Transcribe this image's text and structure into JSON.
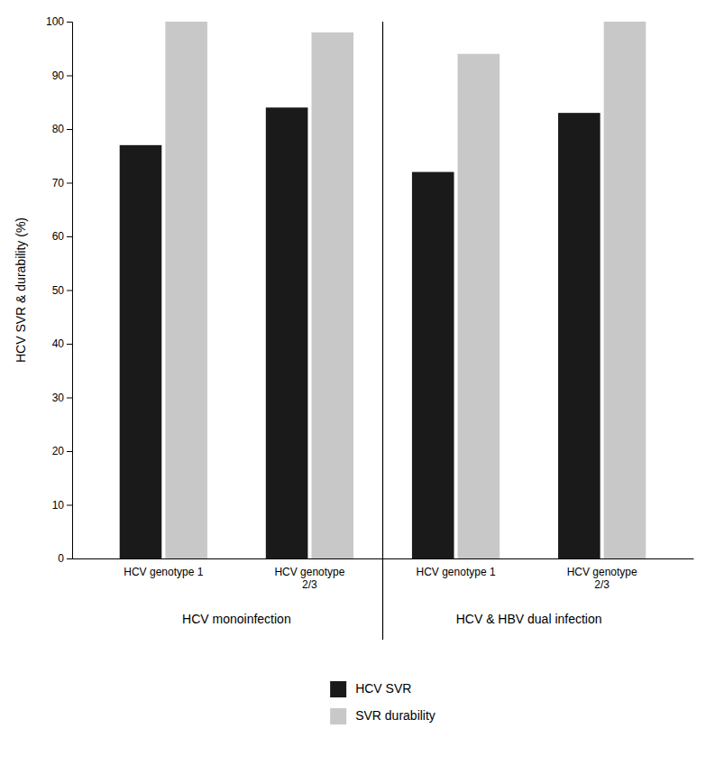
{
  "chart_data": {
    "type": "bar",
    "categories": [
      "HCV genotype 1",
      "HCV genotype\n2/3",
      "HCV genotype 1",
      "HCV genotype\n2/3"
    ],
    "category_group": [
      0,
      0,
      1,
      1
    ],
    "group_labels": [
      "HCV monoinfection",
      "HCV & HBV dual infection"
    ],
    "series": [
      {
        "name": "HCV SVR",
        "color": "#1a1a1a",
        "values": [
          77,
          84,
          72,
          83
        ]
      },
      {
        "name": "SVR durability",
        "color": "#c8c8c8",
        "values": [
          100,
          98,
          94,
          100
        ]
      }
    ],
    "y_label": "HCV SVR & durability (%)",
    "ylim": [
      0,
      100
    ],
    "yticks": [
      0,
      10,
      20,
      30,
      40,
      50,
      60,
      70,
      80,
      90,
      100
    ],
    "grid": false,
    "legend": "bottom"
  }
}
